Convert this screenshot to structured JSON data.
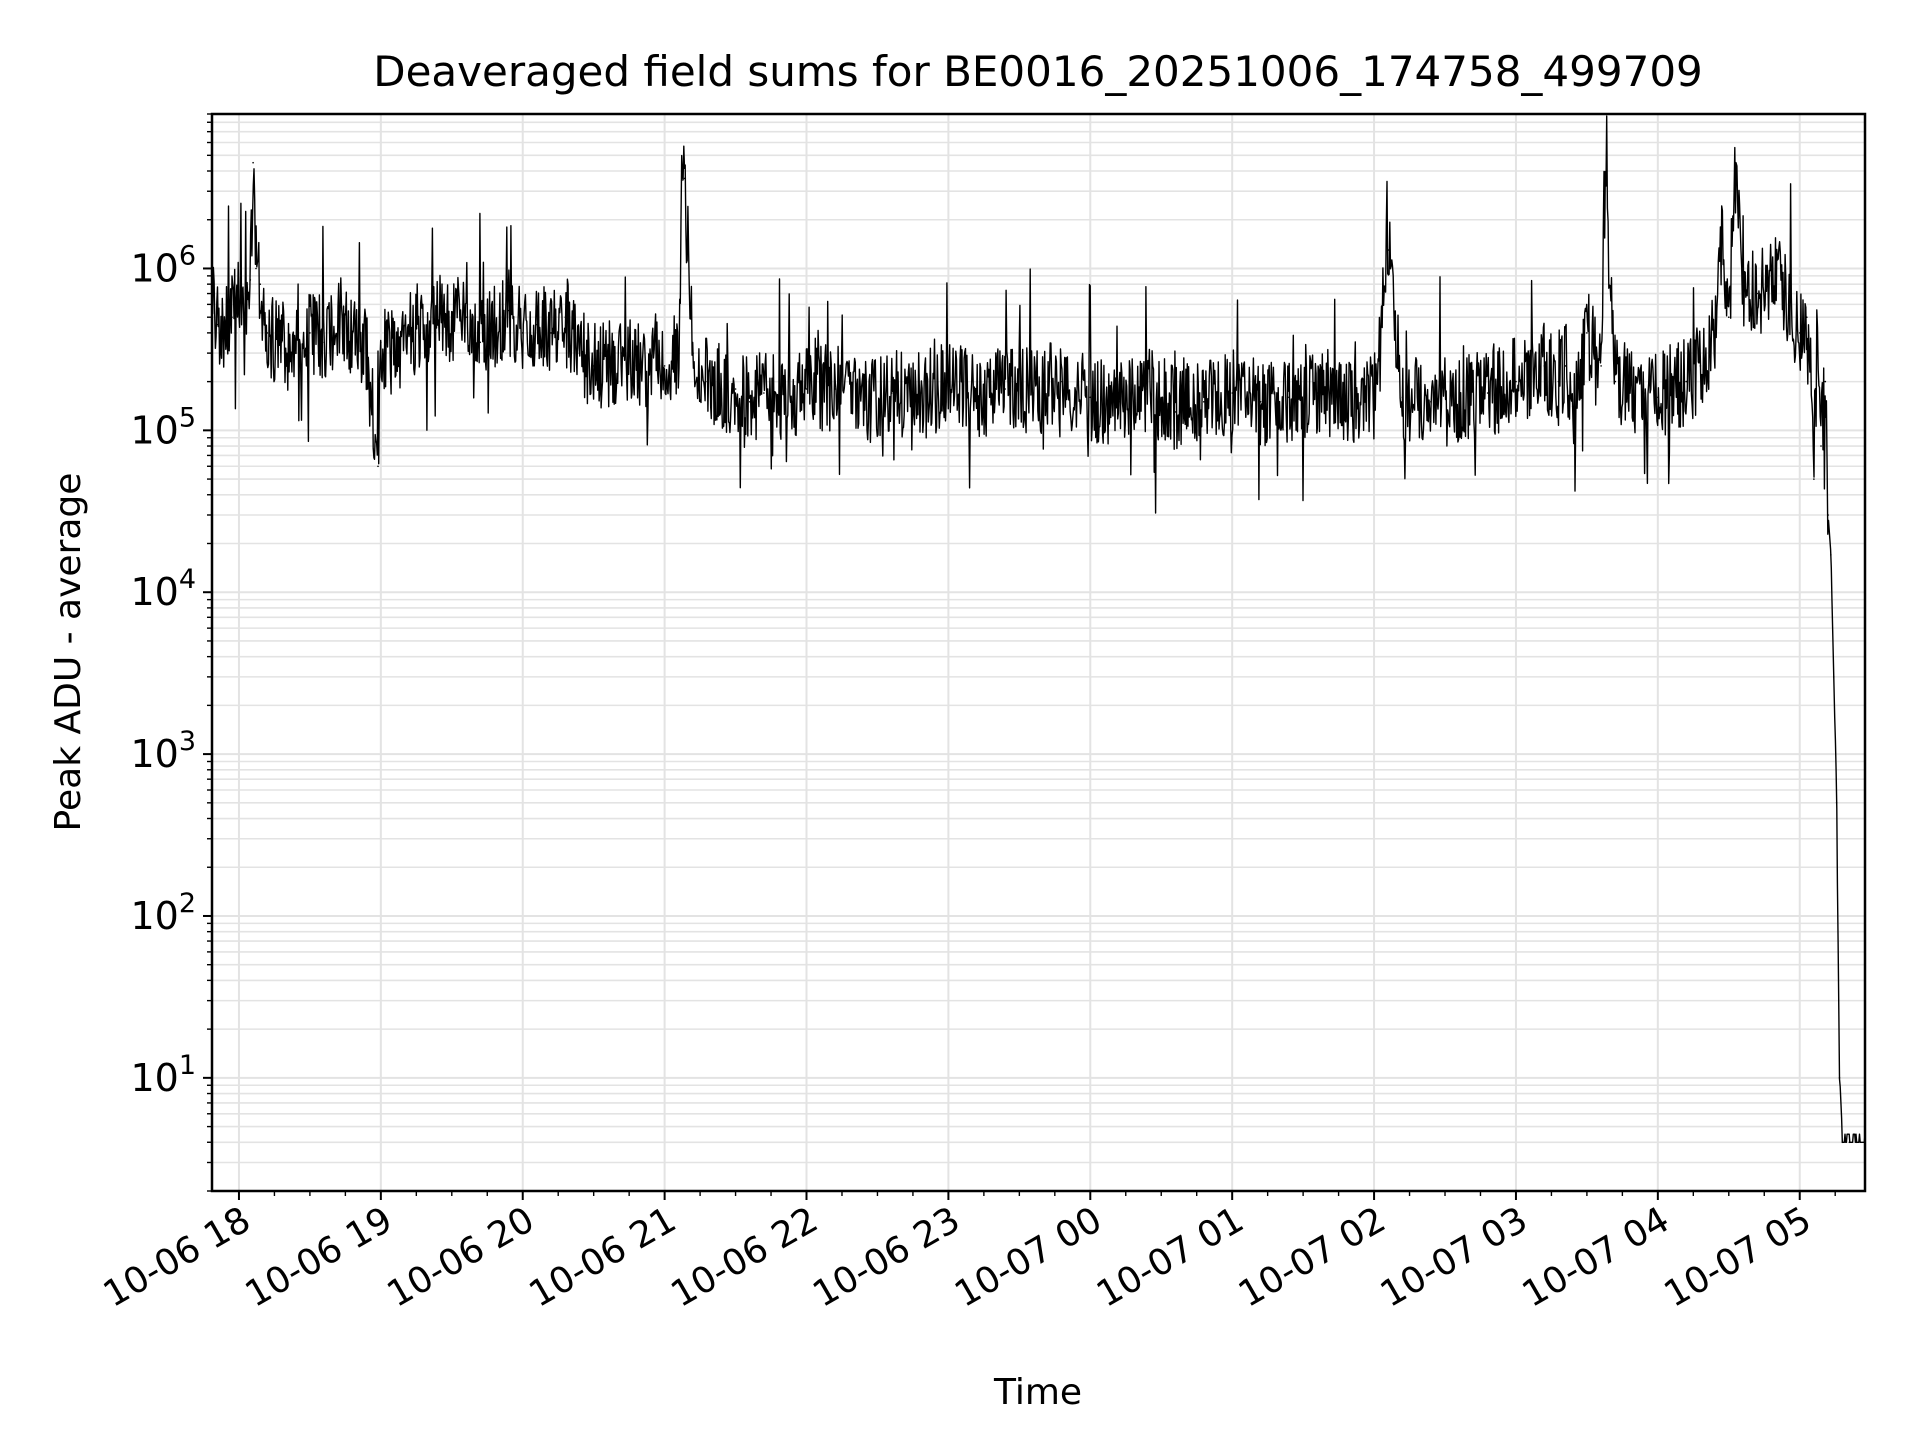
{
  "chart_data": {
    "type": "line",
    "title": "Deaveraged field sums for BE0016_20251006_174758_499709",
    "xlabel": "Time",
    "ylabel": "Peak ADU - average",
    "yscale": "log",
    "ylim": [
      2,
      9000000
    ],
    "xlim_hours": [
      -0.19,
      11.46
    ],
    "grid": true,
    "grid_minor": true,
    "legend": "none",
    "x_tick_labels": [
      "10-06 18",
      "10-06 19",
      "10-06 20",
      "10-06 21",
      "10-06 22",
      "10-06 23",
      "10-07 00",
      "10-07 01",
      "10-07 02",
      "10-07 03",
      "10-07 04",
      "10-07 05"
    ],
    "x_tick_hours": [
      0,
      1,
      2,
      3,
      4,
      5,
      6,
      7,
      8,
      9,
      10,
      11
    ],
    "y_tick_values": [
      10,
      100,
      1000,
      10000,
      100000,
      1000000
    ],
    "y_tick_exponents": [
      "1",
      "2",
      "3",
      "4",
      "5",
      "6"
    ],
    "y_tick_base": "10",
    "series": [
      {
        "name": "Deaveraged field sum",
        "color": "#000000",
        "x_hours": [
          -0.19,
          -0.15,
          -0.1,
          -0.05,
          0.0,
          0.05,
          0.08,
          0.1,
          0.12,
          0.15,
          0.2,
          0.3,
          0.4,
          0.5,
          0.6,
          0.7,
          0.8,
          0.9,
          0.98,
          1.0,
          1.1,
          1.2,
          1.3,
          1.4,
          1.5,
          1.6,
          1.7,
          1.8,
          1.9,
          2.0,
          2.1,
          2.2,
          2.3,
          2.4,
          2.5,
          2.6,
          2.7,
          2.8,
          2.9,
          3.0,
          3.1,
          3.12,
          3.14,
          3.2,
          3.3,
          3.4,
          3.5,
          3.6,
          3.7,
          3.8,
          3.9,
          4.0,
          4.2,
          4.4,
          4.6,
          4.8,
          5.0,
          5.2,
          5.4,
          5.6,
          5.8,
          6.0,
          6.2,
          6.4,
          6.6,
          6.8,
          7.0,
          7.2,
          7.4,
          7.6,
          7.8,
          8.0,
          8.1,
          8.2,
          8.4,
          8.6,
          8.8,
          9.0,
          9.2,
          9.3,
          9.35,
          9.4,
          9.5,
          9.6,
          9.62,
          9.7,
          9.8,
          9.9,
          10.0,
          10.1,
          10.2,
          10.3,
          10.4,
          10.45,
          10.5,
          10.55,
          10.6,
          10.7,
          10.8,
          10.9,
          11.0,
          11.05,
          11.1,
          11.12,
          11.15,
          11.18,
          11.2,
          11.22,
          11.24,
          11.26,
          11.28,
          11.3,
          11.35,
          11.4,
          11.46
        ],
        "y_values": [
          700000,
          450000,
          400000,
          500000,
          600000,
          700000,
          850000,
          4500000,
          1000000,
          800000,
          400000,
          350000,
          300000,
          400000,
          350000,
          500000,
          400000,
          300000,
          60000,
          350000,
          300000,
          400000,
          450000,
          500000,
          450000,
          500000,
          350000,
          450000,
          550000,
          400000,
          450000,
          400000,
          500000,
          300000,
          250000,
          250000,
          300000,
          250000,
          250000,
          250000,
          300000,
          3500000,
          3600000,
          300000,
          200000,
          180000,
          180000,
          150000,
          170000,
          160000,
          150000,
          180000,
          180000,
          150000,
          170000,
          160000,
          200000,
          160000,
          180000,
          170000,
          200000,
          160000,
          150000,
          180000,
          130000,
          150000,
          170000,
          150000,
          160000,
          170000,
          150000,
          160000,
          1300000,
          160000,
          150000,
          150000,
          170000,
          200000,
          250000,
          200000,
          250000,
          140000,
          400000,
          250000,
          3000000,
          200000,
          180000,
          170000,
          160000,
          180000,
          200000,
          250000,
          400000,
          1500000,
          500000,
          4500000,
          800000,
          700000,
          900000,
          700000,
          400000,
          500000,
          50000,
          300000,
          80000,
          200000,
          30000,
          17000,
          3000,
          500,
          10,
          4,
          4,
          4,
          4
        ]
      }
    ]
  }
}
